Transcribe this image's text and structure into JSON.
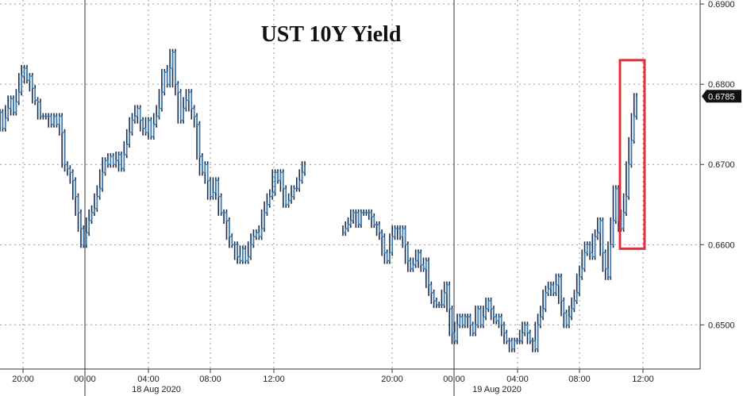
{
  "chart_data": {
    "type": "line",
    "style": "hlc-bars",
    "title": "UST 10Y Yield",
    "ylim": [
      0.6445,
      0.6905
    ],
    "y_ticks": [
      "0.6900",
      "0.6800",
      "0.6700",
      "0.6600",
      "0.6500"
    ],
    "x_ticks": [
      "20:00",
      "00:00",
      "04:00",
      "08:00",
      "12:00",
      "20:00",
      "00:00",
      "04:00",
      "08:00",
      "12:00"
    ],
    "date_labels": [
      "18 Aug 2020",
      "19 Aug 2020"
    ],
    "last_value": "0.6785",
    "grid": true,
    "highlight": {
      "y_range": [
        0.6595,
        0.683
      ],
      "color": "#e0303a"
    },
    "segments": [
      {
        "session": "18 Aug 2020",
        "values": [
          0.6765,
          0.6745,
          0.6758,
          0.677,
          0.6782,
          0.6765,
          0.6778,
          0.679,
          0.681,
          0.682,
          0.6805,
          0.681,
          0.6795,
          0.678,
          0.6778,
          0.676,
          0.676,
          0.676,
          0.676,
          0.675,
          0.676,
          0.675,
          0.676,
          0.674,
          0.67,
          0.6695,
          0.669,
          0.668,
          0.666,
          0.664,
          0.662,
          0.66,
          0.6615,
          0.663,
          0.664,
          0.6645,
          0.666,
          0.667,
          0.669,
          0.6705,
          0.67,
          0.671,
          0.67,
          0.6705,
          0.6712,
          0.6695,
          0.6712,
          0.6725,
          0.674,
          0.6755,
          0.676,
          0.677,
          0.6755,
          0.6745,
          0.674,
          0.6755,
          0.6735,
          0.675,
          0.676,
          0.677,
          0.679,
          0.6815,
          0.68,
          0.682,
          0.684,
          0.68,
          0.679,
          0.6755,
          0.677,
          0.678,
          0.679,
          0.677,
          0.676,
          0.675,
          0.671,
          0.669,
          0.67,
          0.668,
          0.666,
          0.6665,
          0.668,
          0.666,
          0.664,
          0.664,
          0.663,
          0.661,
          0.66,
          0.66,
          0.6585,
          0.658,
          0.6595,
          0.658,
          0.6585,
          0.66,
          0.661,
          0.6615,
          0.661,
          0.662,
          0.664,
          0.665,
          0.666,
          0.6665,
          0.669,
          0.668,
          0.669,
          0.667,
          0.665,
          0.6655,
          0.666,
          0.667,
          0.667,
          0.668,
          0.669,
          0.67
        ]
      },
      {
        "session": "19 Aug 2020",
        "values": [
          0.6615,
          0.662,
          0.6625,
          0.663,
          0.664,
          0.664,
          0.6625,
          0.664,
          0.664,
          0.664,
          0.664,
          0.6635,
          0.6625,
          0.6625,
          0.6615,
          0.661,
          0.659,
          0.658,
          0.659,
          0.661,
          0.662,
          0.662,
          0.661,
          0.662,
          0.66,
          0.658,
          0.657,
          0.6575,
          0.658,
          0.659,
          0.6575,
          0.657,
          0.658,
          0.655,
          0.654,
          0.653,
          0.6525,
          0.6525,
          0.6525,
          0.654,
          0.655,
          0.652,
          0.649,
          0.648,
          0.65,
          0.651,
          0.65,
          0.651,
          0.651,
          0.65,
          0.649,
          0.65,
          0.652,
          0.65,
          0.651,
          0.652,
          0.653,
          0.652,
          0.651,
          0.6505,
          0.651,
          0.65,
          0.649,
          0.648,
          0.648,
          0.647,
          0.648,
          0.648,
          0.648,
          0.649,
          0.65,
          0.649,
          0.648,
          0.648,
          0.647,
          0.65,
          0.651,
          0.652,
          0.654,
          0.6545,
          0.655,
          0.654,
          0.655,
          0.656,
          0.653,
          0.6515,
          0.65,
          0.651,
          0.652,
          0.653,
          0.654,
          0.656,
          0.657,
          0.659,
          0.66,
          0.659,
          0.6585,
          0.661,
          0.6615,
          0.663,
          0.659,
          0.657,
          0.656,
          0.66,
          0.663,
          0.667,
          0.663,
          0.662,
          0.664,
          0.666,
          0.67,
          0.673,
          0.676,
          0.6785
        ]
      }
    ]
  },
  "colors": {
    "series_line": "#2d7fc2",
    "bar_stroke": "#1f2a44",
    "bar_body": "#2c4f8a",
    "grid": "#9a9a9a",
    "axis": "#333333",
    "last_box": "#111111",
    "highlight": "#e0303a"
  }
}
